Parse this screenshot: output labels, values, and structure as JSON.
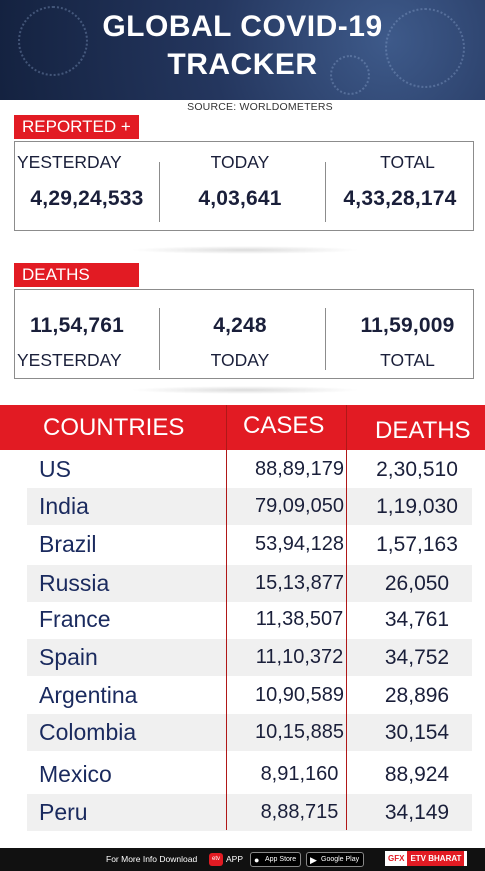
{
  "header": {
    "title_line1": "GLOBAL COVID-19",
    "title_line2": "TRACKER",
    "source": "SOURCE: WORLDOMETERS"
  },
  "reported": {
    "tag": "REPORTED +",
    "yesterday_label": "YESTERDAY",
    "today_label": "TODAY",
    "total_label": "TOTAL",
    "yesterday_value": "4,29,24,533",
    "today_value": "4,03,641",
    "total_value": "4,33,28,174"
  },
  "deaths": {
    "tag": "DEATHS",
    "yesterday_value": "11,54,761",
    "today_value": "4,248",
    "total_value": "11,59,009",
    "yesterday_label": "YESTERDAY",
    "today_label": "TODAY",
    "total_label": "TOTAL"
  },
  "table": {
    "headers": {
      "countries": "COUNTRIES",
      "cases": "CASES",
      "deaths": "DEATHS"
    },
    "rows": [
      {
        "country": "US",
        "cases": "88,89,179",
        "deaths": "2,30,510"
      },
      {
        "country": "India",
        "cases": "79,09,050",
        "deaths": "1,19,030"
      },
      {
        "country": "Brazil",
        "cases": "53,94,128",
        "deaths": "1,57,163"
      },
      {
        "country": "Russia",
        "cases": "15,13,877",
        "deaths": "26,050"
      },
      {
        "country": "France",
        "cases": "11,38,507",
        "deaths": "34,761"
      },
      {
        "country": "Spain",
        "cases": "11,10,372",
        "deaths": "34,752"
      },
      {
        "country": "Argentina",
        "cases": "10,90,589",
        "deaths": "28,896"
      },
      {
        "country": "Colombia",
        "cases": "10,15,885",
        "deaths": "30,154"
      },
      {
        "country": "Mexico",
        "cases": "8,91,160",
        "deaths": "88,924"
      },
      {
        "country": "Peru",
        "cases": "8,88,715",
        "deaths": "34,149"
      }
    ]
  },
  "footer": {
    "more_info": "For More Info Download",
    "app": "APP",
    "app_store": "App Store",
    "google_play": "Google Play",
    "gfx": "GFX",
    "brand": "ETV BHARAT"
  },
  "colors": {
    "accent_red": "#e21b23",
    "header_blue": "#24365e",
    "text_navy": "#1a1f3a"
  },
  "icons": [
    "virus-icon",
    "etv-app-icon",
    "apple-icon",
    "google-play-icon"
  ]
}
